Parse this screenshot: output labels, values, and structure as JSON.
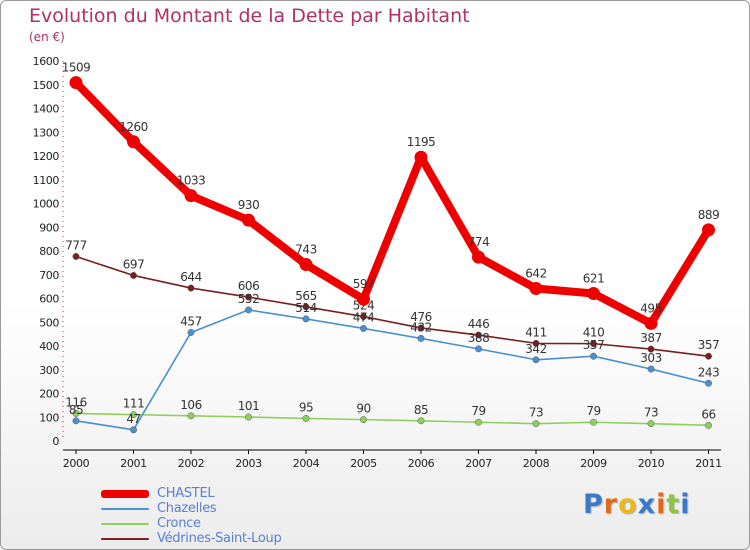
{
  "chart_data": {
    "type": "line",
    "title": "Evolution du Montant de la Dette par Habitant",
    "subtitle": "(en €)",
    "categories": [
      "2000",
      "2001",
      "2002",
      "2003",
      "2004",
      "2005",
      "2006",
      "2007",
      "2008",
      "2009",
      "2010",
      "2011"
    ],
    "ylim": [
      0,
      1600
    ],
    "yticks": [
      "0",
      "100",
      "200",
      "300",
      "400",
      "500",
      "600",
      "700",
      "800",
      "900",
      "1000",
      "1100",
      "1200",
      "1300",
      "1400",
      "1500",
      "1600"
    ],
    "grid": false,
    "legend_position": "bottom-left",
    "series": [
      {
        "name": "Vedrines-Saint-Loup",
        "color": "#7a1f1f",
        "values": [
          777,
          697,
          644,
          606,
          565,
          524,
          476,
          446,
          411,
          410,
          387,
          357
        ]
      },
      {
        "name": "Cronce",
        "color": "#8ed05e",
        "values": [
          116,
          111,
          106,
          101,
          95,
          90,
          85,
          79,
          73,
          79,
          73,
          66
        ]
      },
      {
        "name": "Chazelles",
        "color": "#4a90d0",
        "values": [
          85,
          47,
          457,
          552,
          514,
          474,
          432,
          388,
          342,
          357,
          303,
          243
        ]
      },
      {
        "name": "CHASTEL",
        "color": "#ee0000",
        "values": [
          1509,
          1260,
          1033,
          930,
          743,
          597,
          1195,
          774,
          642,
          621,
          495,
          889
        ]
      }
    ]
  },
  "legend": [
    {
      "label": "CHASTEL",
      "color": "#ee0000",
      "thick": true
    },
    {
      "label": "Chazelles",
      "color": "#4a90d0",
      "thick": false
    },
    {
      "label": "Cronce",
      "color": "#8ed05e",
      "thick": false
    },
    {
      "label": "Védrines-Saint-Loup",
      "color": "#7a1f1f",
      "thick": false
    }
  ],
  "logo": {
    "text": "Proxiti",
    "colors": [
      "#3a78c8",
      "#e06a1c",
      "#e8b81f",
      "#3a78c8",
      "#e06a1c",
      "#8ec63f",
      "#3a78c8"
    ]
  }
}
